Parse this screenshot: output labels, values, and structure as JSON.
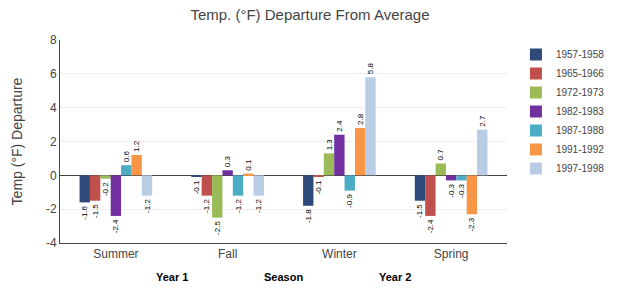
{
  "chart_data": {
    "type": "bar",
    "title": "Temp. (°F) Departure From Average",
    "y_label": "Temp (°F) Departure",
    "categories": [
      "Summer",
      "Fall",
      "Winter",
      "Spring"
    ],
    "series": [
      {
        "name": "1957-1958",
        "color": "#2E4A7A",
        "values": [
          -1.6,
          -0.1,
          -1.8,
          -1.5
        ]
      },
      {
        "name": "1965-1966",
        "color": "#C0504D",
        "values": [
          -1.5,
          -1.2,
          -0.1,
          -2.4
        ]
      },
      {
        "name": "1972-1973",
        "color": "#9BBB59",
        "values": [
          -0.2,
          -2.5,
          1.3,
          0.7
        ]
      },
      {
        "name": "1982-1983",
        "color": "#7030A0",
        "values": [
          -2.4,
          0.3,
          2.4,
          -0.3
        ]
      },
      {
        "name": "1987-1988",
        "color": "#4BACC6",
        "values": [
          0.6,
          -1.2,
          -0.9,
          -0.3
        ]
      },
      {
        "name": "1991-1992",
        "color": "#F79646",
        "values": [
          1.2,
          0.1,
          2.8,
          -2.3
        ]
      },
      {
        "name": "1997-1998",
        "color": "#B8CCE4",
        "values": [
          -1.2,
          -1.2,
          5.8,
          2.7
        ]
      }
    ],
    "ylim": [
      -4.0,
      8.0
    ],
    "yticks": [
      -4,
      -2,
      0,
      2,
      4,
      6,
      8
    ],
    "grid": true,
    "legend": "upper right",
    "data_labels": true,
    "annotations": [
      "Year 1",
      "Season",
      "Year 2"
    ]
  }
}
